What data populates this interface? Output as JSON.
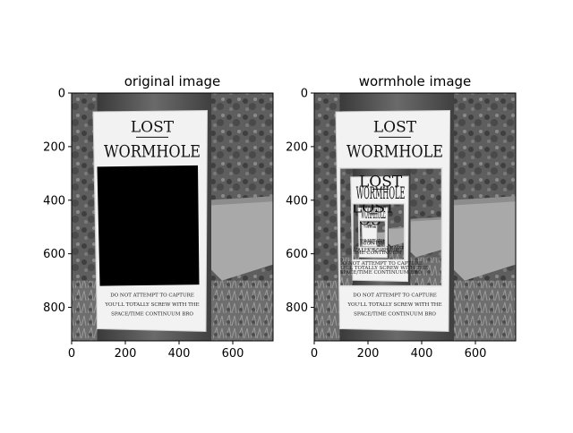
{
  "chart_data": [
    {
      "type": "image",
      "title": "original image",
      "xlim": [
        0,
        750
      ],
      "ylim": [
        925,
        0
      ],
      "xticks": [
        0,
        200,
        400,
        600
      ],
      "yticks": [
        0,
        200,
        400,
        600,
        800
      ],
      "poster": {
        "heading": "LOST",
        "subheading": "WORMHOLE",
        "caption_lines": [
          "DO NOT ATTEMPT TO CAPTURE",
          "YOU'LL TOTALLY SCREW WITH THE",
          "SPACE/TIME CONTINUUM BRO"
        ]
      }
    },
    {
      "type": "image",
      "title": "wormhole image",
      "xlim": [
        0,
        750
      ],
      "ylim": [
        925,
        0
      ],
      "xticks": [
        0,
        200,
        400,
        600
      ],
      "yticks": [
        0,
        200,
        400,
        600,
        800
      ],
      "poster": {
        "heading": "LOST",
        "subheading": "WORMHOLE",
        "caption_lines": [
          "DO NOT ATTEMPT TO CAPTURE",
          "YOU'LL TOTALLY SCREW WITH THE",
          "SPACE/TIME CONTINUUM BRO"
        ]
      }
    }
  ]
}
